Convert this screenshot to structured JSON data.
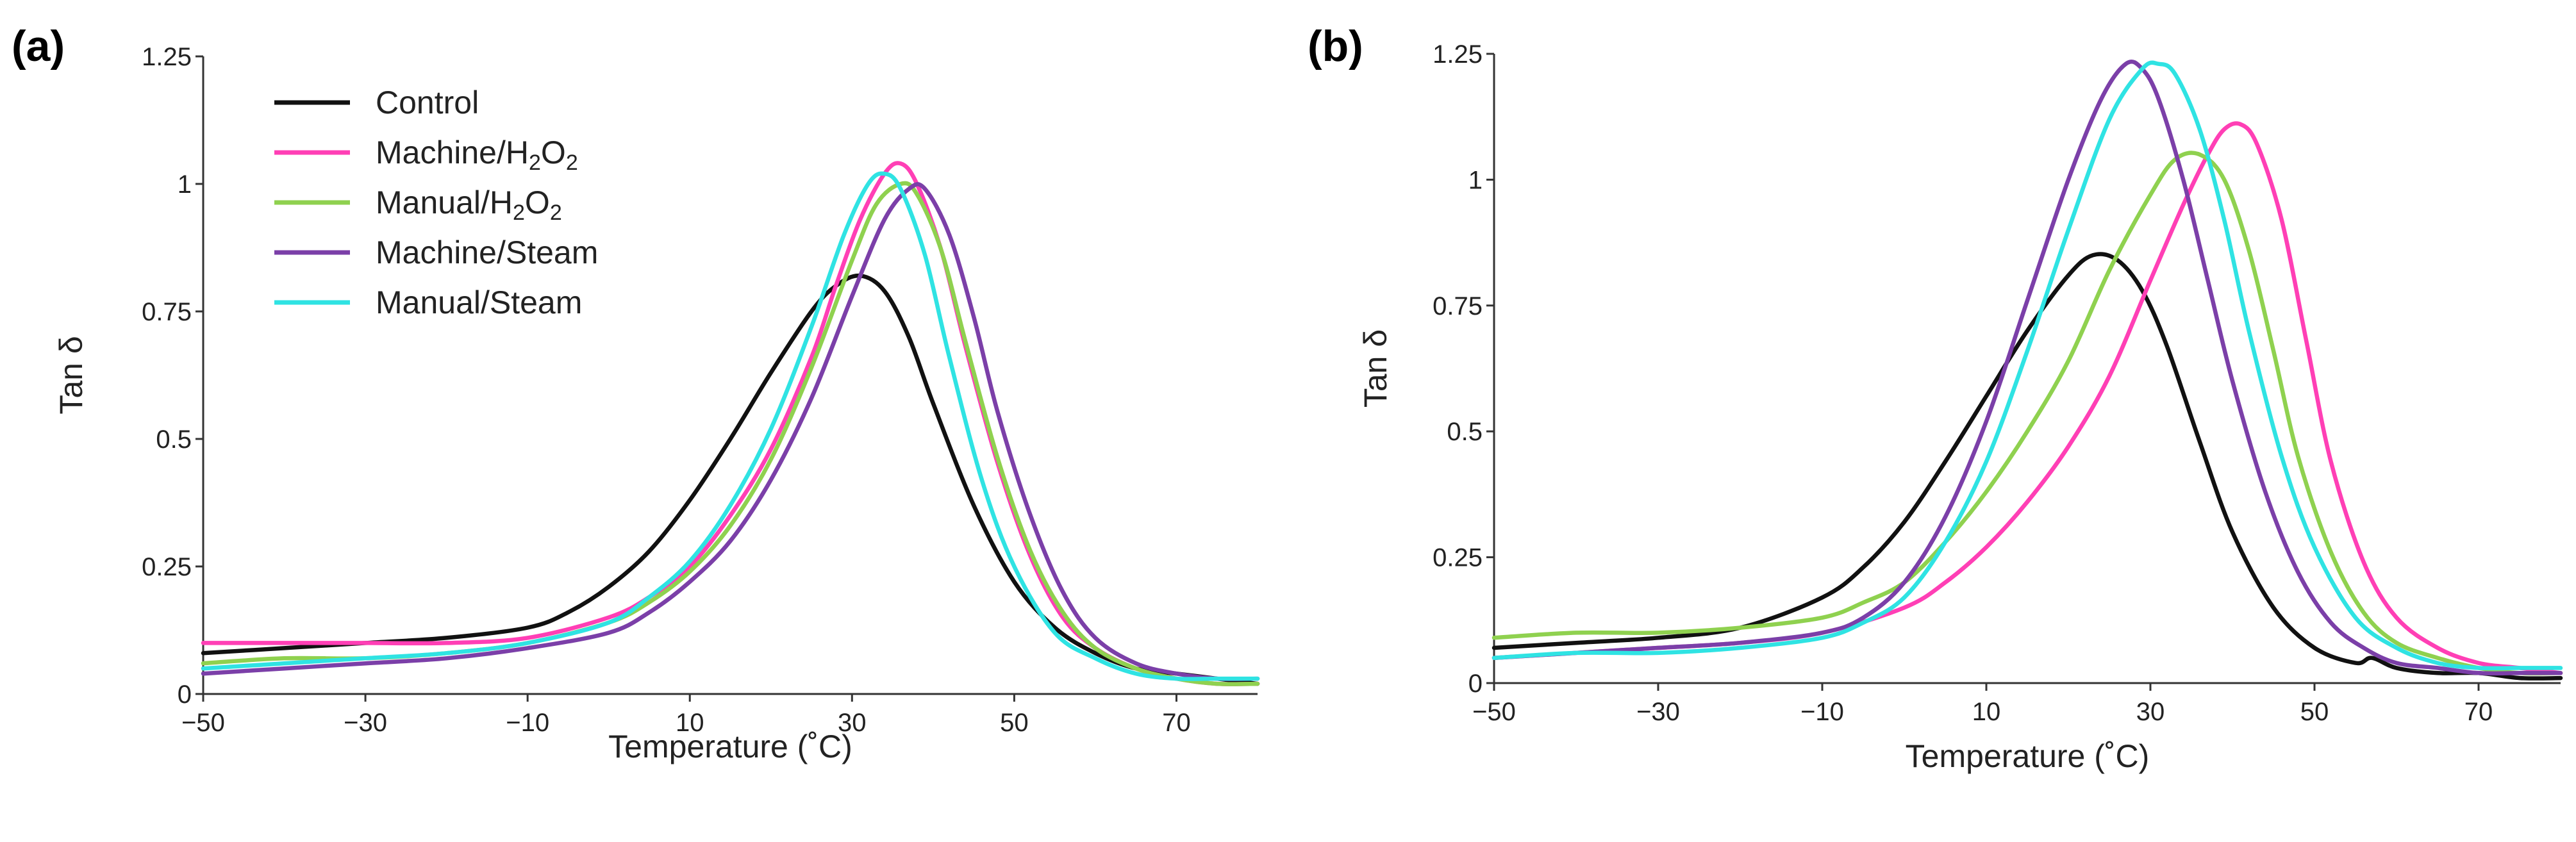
{
  "colors": {
    "control": "#111111",
    "machine_h2o2": "#ff3fb5",
    "manual_h2o2": "#8fd14f",
    "machine_steam": "#7b3fa8",
    "manual_steam": "#2fe3e3"
  },
  "chart_data": [
    {
      "type": "line",
      "panel_label": "(a)",
      "xlabel": "Temperature (˚C)",
      "ylabel": "Tan δ",
      "xlim": [
        -50,
        80
      ],
      "ylim": [
        0,
        1.25
      ],
      "xticks": [
        -50,
        -30,
        -10,
        10,
        30,
        50,
        70
      ],
      "xtick_labels": [
        "−50",
        "−30",
        "−10",
        "10",
        "30",
        "50",
        "70"
      ],
      "yticks": [
        0,
        0.25,
        0.5,
        0.75,
        1,
        1.25
      ],
      "ytick_labels": [
        "0",
        "0.25",
        "0.5",
        "0.75",
        "1",
        "1.25"
      ],
      "legend": {
        "placement": "top-left",
        "entries": [
          {
            "label": "Control",
            "base": "Control",
            "sub": "",
            "tail": "",
            "color_key": "control"
          },
          {
            "label": "Machine/H₂O₂",
            "base": "Machine/H",
            "sub": "2",
            "mid": "O",
            "sub2": "2",
            "color_key": "machine_h2o2"
          },
          {
            "label": "Manual/H₂O₂",
            "base": "Manual/H",
            "sub": "2",
            "mid": "O",
            "sub2": "2",
            "color_key": "manual_h2o2"
          },
          {
            "label": "Machine/Steam",
            "base": "Machine/Steam",
            "sub": "",
            "tail": "",
            "color_key": "machine_steam"
          },
          {
            "label": "Manual/Steam",
            "base": "Manual/Steam",
            "sub": "",
            "tail": "",
            "color_key": "manual_steam"
          }
        ]
      },
      "series": [
        {
          "name": "Control",
          "color_key": "control",
          "x": [
            -50,
            -40,
            -30,
            -20,
            -10,
            -5,
            0,
            5,
            10,
            15,
            20,
            25,
            28,
            31,
            34,
            37,
            40,
            45,
            50,
            55,
            60,
            65,
            70,
            75,
            80
          ],
          "y": [
            0.08,
            0.09,
            0.1,
            0.11,
            0.13,
            0.16,
            0.21,
            0.28,
            0.38,
            0.5,
            0.63,
            0.75,
            0.8,
            0.82,
            0.79,
            0.7,
            0.57,
            0.37,
            0.22,
            0.13,
            0.08,
            0.05,
            0.04,
            0.03,
            0.02
          ]
        },
        {
          "name": "Machine/H₂O₂",
          "color_key": "machine_h2o2",
          "x": [
            -50,
            -40,
            -30,
            -20,
            -10,
            0,
            5,
            10,
            15,
            20,
            25,
            28,
            31,
            34,
            36,
            38,
            41,
            44,
            48,
            52,
            56,
            60,
            65,
            70,
            75,
            80
          ],
          "y": [
            0.1,
            0.1,
            0.1,
            0.1,
            0.11,
            0.15,
            0.19,
            0.25,
            0.35,
            0.48,
            0.66,
            0.8,
            0.93,
            1.02,
            1.04,
            1.0,
            0.87,
            0.68,
            0.45,
            0.27,
            0.15,
            0.09,
            0.05,
            0.03,
            0.02,
            0.02
          ]
        },
        {
          "name": "Manual/H₂O₂",
          "color_key": "manual_h2o2",
          "x": [
            -50,
            -40,
            -30,
            -20,
            -10,
            0,
            5,
            10,
            15,
            20,
            25,
            30,
            33,
            36,
            38,
            41,
            44,
            48,
            52,
            56,
            60,
            65,
            70,
            75,
            80
          ],
          "y": [
            0.06,
            0.07,
            0.07,
            0.08,
            0.1,
            0.14,
            0.18,
            0.24,
            0.33,
            0.46,
            0.64,
            0.85,
            0.96,
            1.0,
            0.98,
            0.87,
            0.69,
            0.46,
            0.28,
            0.16,
            0.09,
            0.05,
            0.03,
            0.02,
            0.02
          ]
        },
        {
          "name": "Machine/Steam",
          "color_key": "machine_steam",
          "x": [
            -50,
            -40,
            -30,
            -20,
            -10,
            0,
            5,
            10,
            15,
            20,
            25,
            30,
            34,
            37,
            39,
            42,
            45,
            48,
            52,
            56,
            60,
            65,
            70,
            75,
            80
          ],
          "y": [
            0.04,
            0.05,
            0.06,
            0.07,
            0.09,
            0.12,
            0.16,
            0.22,
            0.3,
            0.42,
            0.58,
            0.78,
            0.93,
            0.99,
            0.99,
            0.9,
            0.74,
            0.55,
            0.35,
            0.2,
            0.11,
            0.06,
            0.04,
            0.03,
            0.03
          ]
        },
        {
          "name": "Manual/Steam",
          "color_key": "manual_steam",
          "x": [
            -50,
            -40,
            -30,
            -20,
            -10,
            0,
            5,
            10,
            15,
            20,
            25,
            29,
            32,
            34,
            36,
            39,
            42,
            46,
            50,
            55,
            60,
            65,
            70,
            75,
            80
          ],
          "y": [
            0.05,
            0.06,
            0.07,
            0.08,
            0.1,
            0.14,
            0.19,
            0.26,
            0.37,
            0.52,
            0.72,
            0.9,
            1.0,
            1.02,
            0.99,
            0.86,
            0.66,
            0.42,
            0.25,
            0.12,
            0.07,
            0.04,
            0.03,
            0.03,
            0.03
          ]
        }
      ]
    },
    {
      "type": "line",
      "panel_label": "(b)",
      "xlabel": "Temperature (˚C)",
      "ylabel": "Tan δ",
      "xlim": [
        -50,
        80
      ],
      "ylim": [
        0,
        1.25
      ],
      "xticks": [
        -50,
        -30,
        -10,
        10,
        30,
        50,
        70
      ],
      "xtick_labels": [
        "−50",
        "−30",
        "−10",
        "10",
        "30",
        "50",
        "70"
      ],
      "yticks": [
        0,
        0.25,
        0.5,
        0.75,
        1,
        1.25
      ],
      "ytick_labels": [
        "0",
        "0.25",
        "0.5",
        "0.75",
        "1",
        "1.25"
      ],
      "series": [
        {
          "name": "Control",
          "color_key": "control",
          "x": [
            -50,
            -40,
            -30,
            -20,
            -10,
            -5,
            0,
            5,
            10,
            15,
            20,
            23,
            26,
            29,
            32,
            36,
            40,
            45,
            50,
            55,
            57,
            60,
            65,
            70,
            75,
            80
          ],
          "y": [
            0.07,
            0.08,
            0.09,
            0.11,
            0.17,
            0.23,
            0.32,
            0.44,
            0.57,
            0.7,
            0.81,
            0.85,
            0.84,
            0.78,
            0.67,
            0.48,
            0.3,
            0.15,
            0.07,
            0.04,
            0.05,
            0.03,
            0.02,
            0.02,
            0.01,
            0.01
          ]
        },
        {
          "name": "Machine/H₂O₂",
          "color_key": "machine_h2o2",
          "x": [
            -50,
            -40,
            -30,
            -20,
            -10,
            0,
            5,
            10,
            15,
            20,
            25,
            30,
            34,
            37,
            39,
            41,
            43,
            46,
            49,
            52,
            56,
            60,
            65,
            70,
            75,
            80
          ],
          "y": [
            0.05,
            0.06,
            0.07,
            0.08,
            0.1,
            0.15,
            0.2,
            0.27,
            0.36,
            0.47,
            0.61,
            0.8,
            0.95,
            1.05,
            1.1,
            1.11,
            1.07,
            0.92,
            0.68,
            0.44,
            0.24,
            0.13,
            0.07,
            0.04,
            0.03,
            0.02
          ]
        },
        {
          "name": "Manual/H₂O₂",
          "color_key": "manual_h2o2",
          "x": [
            -50,
            -40,
            -30,
            -20,
            -10,
            -5,
            0,
            5,
            10,
            15,
            20,
            25,
            30,
            33,
            36,
            39,
            42,
            45,
            48,
            52,
            56,
            60,
            65,
            70,
            75,
            80
          ],
          "y": [
            0.09,
            0.1,
            0.1,
            0.11,
            0.13,
            0.16,
            0.2,
            0.28,
            0.38,
            0.5,
            0.64,
            0.82,
            0.97,
            1.04,
            1.05,
            1.0,
            0.86,
            0.66,
            0.45,
            0.26,
            0.14,
            0.08,
            0.05,
            0.03,
            0.02,
            0.02
          ]
        },
        {
          "name": "Machine/Steam",
          "color_key": "machine_steam",
          "x": [
            -50,
            -40,
            -30,
            -20,
            -10,
            -5,
            0,
            5,
            10,
            15,
            20,
            24,
            27,
            29,
            31,
            34,
            37,
            40,
            44,
            48,
            52,
            56,
            60,
            65,
            70,
            75,
            80
          ],
          "y": [
            0.05,
            0.06,
            0.07,
            0.08,
            0.1,
            0.13,
            0.2,
            0.33,
            0.52,
            0.76,
            1.0,
            1.16,
            1.23,
            1.22,
            1.16,
            1.0,
            0.8,
            0.6,
            0.38,
            0.22,
            0.12,
            0.07,
            0.04,
            0.03,
            0.02,
            0.02,
            0.02
          ]
        },
        {
          "name": "Manual/Steam",
          "color_key": "manual_steam",
          "x": [
            -50,
            -40,
            -30,
            -20,
            -10,
            -5,
            0,
            5,
            10,
            15,
            20,
            25,
            29,
            31,
            33,
            36,
            39,
            42,
            46,
            50,
            55,
            60,
            65,
            70,
            75,
            80
          ],
          "y": [
            0.05,
            0.06,
            0.06,
            0.07,
            0.09,
            0.12,
            0.17,
            0.28,
            0.44,
            0.66,
            0.9,
            1.12,
            1.22,
            1.23,
            1.21,
            1.1,
            0.92,
            0.7,
            0.45,
            0.27,
            0.13,
            0.07,
            0.04,
            0.03,
            0.03,
            0.03
          ]
        }
      ]
    }
  ]
}
